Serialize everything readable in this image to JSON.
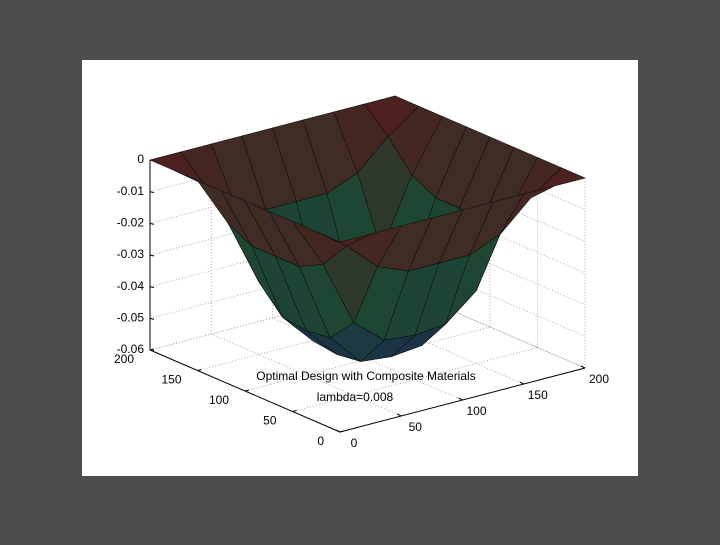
{
  "chart_data": {
    "type": "surface",
    "title": "Optimal Design with Composite Materials",
    "subtitle": "lambda=0.008",
    "x": [
      0,
      25,
      50,
      75,
      100,
      125,
      150,
      175,
      200
    ],
    "y": [
      0,
      25,
      50,
      75,
      100,
      125,
      150,
      175,
      200
    ],
    "z": [
      [
        0,
        0,
        0,
        0,
        0,
        0,
        0,
        0,
        0
      ],
      [
        0,
        -0.007,
        -0.016,
        -0.02,
        -0.02,
        -0.02,
        -0.016,
        -0.007,
        0
      ],
      [
        0,
        -0.016,
        -0.037,
        -0.045,
        -0.046,
        -0.045,
        -0.037,
        -0.016,
        0
      ],
      [
        0,
        -0.02,
        -0.045,
        -0.055,
        -0.056,
        -0.055,
        -0.045,
        -0.02,
        0
      ],
      [
        0,
        -0.02,
        -0.046,
        -0.056,
        -0.058,
        -0.056,
        -0.046,
        -0.02,
        0
      ],
      [
        0,
        -0.02,
        -0.045,
        -0.055,
        -0.056,
        -0.055,
        -0.045,
        -0.02,
        0
      ],
      [
        0,
        -0.016,
        -0.037,
        -0.045,
        -0.046,
        -0.045,
        -0.037,
        -0.016,
        0
      ],
      [
        0,
        -0.007,
        -0.016,
        -0.02,
        -0.02,
        -0.02,
        -0.016,
        -0.007,
        0
      ],
      [
        0,
        0,
        0,
        0,
        0,
        0,
        0,
        0,
        0
      ]
    ],
    "xlim": [
      0,
      200
    ],
    "ylim": [
      0,
      200
    ],
    "zlim": [
      -0.06,
      0
    ],
    "xticks": [
      0,
      50,
      100,
      150,
      200
    ],
    "yticks": [
      0,
      50,
      100,
      150,
      200
    ],
    "zticks": [
      -0.06,
      -0.05,
      -0.04,
      -0.03,
      -0.02,
      -0.01,
      0
    ],
    "grid": true,
    "colormap": [
      "#3a62b0",
      "#3fa070",
      "#b04444"
    ]
  }
}
